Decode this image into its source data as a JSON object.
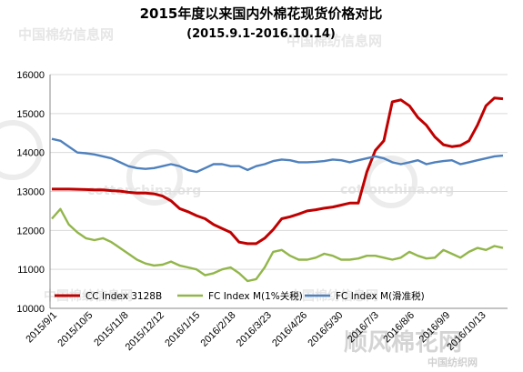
{
  "chart_data": {
    "type": "line",
    "title": "2015年度以来国内外棉花现货价格对比",
    "subtitle": "(2015.9.1-2016.10.14)",
    "ylim": [
      10000,
      16000
    ],
    "yticks": [
      "10000",
      "11000",
      "12000",
      "13000",
      "14000",
      "15000",
      "16000"
    ],
    "grid": true,
    "legend_position": "bottom",
    "x_tick_labels": [
      "2015/9/1",
      "2015/10/5",
      "2015/11/8",
      "2015/12/12",
      "2016/1/15",
      "2016/2/18",
      "2016/3/23",
      "2016/4/26",
      "2016/5/30",
      "2016/7/3",
      "2016/8/6",
      "2016/9/9",
      "2016/10/13"
    ],
    "series": [
      {
        "name": "CC Index 3128B",
        "color": "#c00000",
        "values": [
          13060,
          13060,
          13060,
          13055,
          13050,
          13040,
          13040,
          13020,
          13010,
          12980,
          12960,
          12960,
          12940,
          12880,
          12760,
          12560,
          12480,
          12380,
          12300,
          12150,
          12050,
          11950,
          11700,
          11660,
          11660,
          11800,
          12020,
          12300,
          12350,
          12420,
          12500,
          12530,
          12570,
          12600,
          12650,
          12700,
          12700,
          13500,
          14050,
          14300,
          15300,
          15350,
          15200,
          14900,
          14700,
          14400,
          14200,
          14150,
          14180,
          14300,
          14700,
          15200,
          15400,
          15380
        ]
      },
      {
        "name": "FC Index M(1%关税)",
        "color": "#92b64a",
        "values": [
          12300,
          12550,
          12150,
          11950,
          11800,
          11750,
          11800,
          11700,
          11550,
          11400,
          11250,
          11150,
          11100,
          11120,
          11200,
          11100,
          11050,
          11000,
          10850,
          10900,
          11000,
          11050,
          10900,
          10700,
          10750,
          11050,
          11450,
          11500,
          11350,
          11250,
          11250,
          11300,
          11400,
          11350,
          11250,
          11250,
          11280,
          11350,
          11350,
          11300,
          11250,
          11300,
          11450,
          11350,
          11280,
          11300,
          11500,
          11400,
          11300,
          11450,
          11550,
          11500,
          11600,
          11550
        ]
      },
      {
        "name": "FC Index M(滑准税)",
        "color": "#4f81bd",
        "values": [
          14350,
          14300,
          14150,
          14000,
          13980,
          13950,
          13900,
          13850,
          13750,
          13650,
          13600,
          13580,
          13600,
          13650,
          13700,
          13650,
          13550,
          13500,
          13600,
          13700,
          13700,
          13650,
          13650,
          13550,
          13650,
          13700,
          13780,
          13820,
          13800,
          13750,
          13750,
          13760,
          13780,
          13820,
          13800,
          13750,
          13800,
          13850,
          13900,
          13850,
          13750,
          13700,
          13750,
          13800,
          13700,
          13750,
          13780,
          13800,
          13700,
          13750,
          13800,
          13850,
          13900,
          13920
        ]
      }
    ]
  },
  "watermarks": {
    "top_left": "中国棉纺信息网",
    "top_center": "中国棉纺信息网",
    "mid_left": "cottonchina.org",
    "mid_right": "cottonchina.org",
    "bottom_left": "中国棉纺信息网",
    "bottom_mid": "中国棉纺信息网",
    "brand": "顺风棉花网",
    "brand_sub": "中国纺织网"
  },
  "colors": {
    "grid": "#d9d9d9",
    "axis": "#888888",
    "watermark": "#e6e6e6",
    "brand_watermark": "#d0d0d0"
  }
}
